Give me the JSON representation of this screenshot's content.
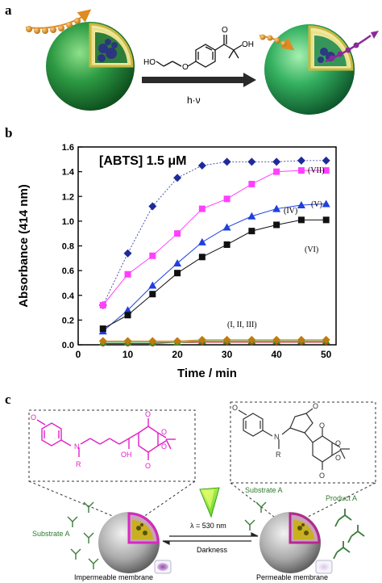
{
  "panel_a": {
    "label": "a",
    "arrow_label": "h·ν",
    "molecule_labels": {
      "ho": "HO",
      "oh": "OH",
      "o_ether": "O",
      "o_ketone": "O"
    }
  },
  "panel_b": {
    "label": "b",
    "annotation": "[ABTS] 1.5 μM",
    "series_labels": {
      "vii": "(VII)",
      "iv": "(IV)",
      "v": "(V)",
      "vi": "(VI)",
      "i_ii_iii": "(I, II, III)"
    }
  },
  "panel_c": {
    "label": "c",
    "substrate_left": "Substrate A",
    "substrate_right": "Substrate A",
    "product_right": "Product A",
    "wavelength": "λ = 530 nm",
    "darkness": "Darkness",
    "impermeable": "Impermeable membrane",
    "permeable": "Permeable membrane",
    "mol_left_labels": {
      "n": "N",
      "r": "R",
      "oh": "OH",
      "o1": "O",
      "o2": "O",
      "o3": "O",
      "o4": "O",
      "o5": "O"
    },
    "mol_right_labels": {
      "n": "N",
      "r": "R",
      "o1": "O",
      "o2": "O",
      "o3": "O",
      "o4": "O",
      "o5": "O",
      "o6": "O"
    }
  },
  "colors": {
    "vii": "#1f2a9a",
    "v": "#ff40ff",
    "iv": "#1f3fe0",
    "vi": "#111111",
    "green_sphere": "#2e8b3e",
    "magenta_mol": "#e020c8"
  },
  "chart_data": {
    "type": "line",
    "xlabel": "Time / min",
    "ylabel": "Absorbance (414 nm)",
    "xlim": [
      0,
      52
    ],
    "ylim": [
      0,
      1.6
    ],
    "xticks": [
      0,
      10,
      20,
      30,
      40,
      50
    ],
    "yticks": [
      0.0,
      0.2,
      0.4,
      0.6,
      0.8,
      1.0,
      1.2,
      1.4,
      1.6
    ],
    "tick_labels_x": [
      "0",
      "10",
      "20",
      "30",
      "40",
      "50"
    ],
    "tick_labels_y": [
      "0.0",
      "0.2",
      "0.4",
      "0.6",
      "0.8",
      "1.0",
      "1.2",
      "1.4",
      "1.6"
    ],
    "x": [
      5,
      10,
      15,
      20,
      25,
      30,
      35,
      40,
      45,
      50
    ],
    "series": [
      {
        "name": "(VII)",
        "values": [
          0.32,
          0.74,
          1.12,
          1.35,
          1.45,
          1.48,
          1.48,
          1.48,
          1.49,
          1.49
        ]
      },
      {
        "name": "(V)",
        "values": [
          0.32,
          0.57,
          0.72,
          0.9,
          1.1,
          1.18,
          1.3,
          1.4,
          1.41,
          1.41
        ]
      },
      {
        "name": "(IV)",
        "values": [
          0.11,
          0.28,
          0.48,
          0.66,
          0.83,
          0.95,
          1.04,
          1.1,
          1.13,
          1.14
        ]
      },
      {
        "name": "(VI)",
        "values": [
          0.13,
          0.24,
          0.41,
          0.58,
          0.71,
          0.81,
          0.92,
          0.97,
          1.01,
          1.01
        ]
      },
      {
        "name": "(I)",
        "values": [
          0.01,
          0.01,
          0.01,
          0.02,
          0.02,
          0.02,
          0.02,
          0.02,
          0.02,
          0.02
        ]
      },
      {
        "name": "(II)",
        "values": [
          0.02,
          0.02,
          0.02,
          0.02,
          0.03,
          0.03,
          0.03,
          0.03,
          0.03,
          0.03
        ]
      },
      {
        "name": "(III)",
        "values": [
          0.03,
          0.03,
          0.03,
          0.03,
          0.04,
          0.04,
          0.04,
          0.04,
          0.04,
          0.04
        ]
      }
    ]
  }
}
